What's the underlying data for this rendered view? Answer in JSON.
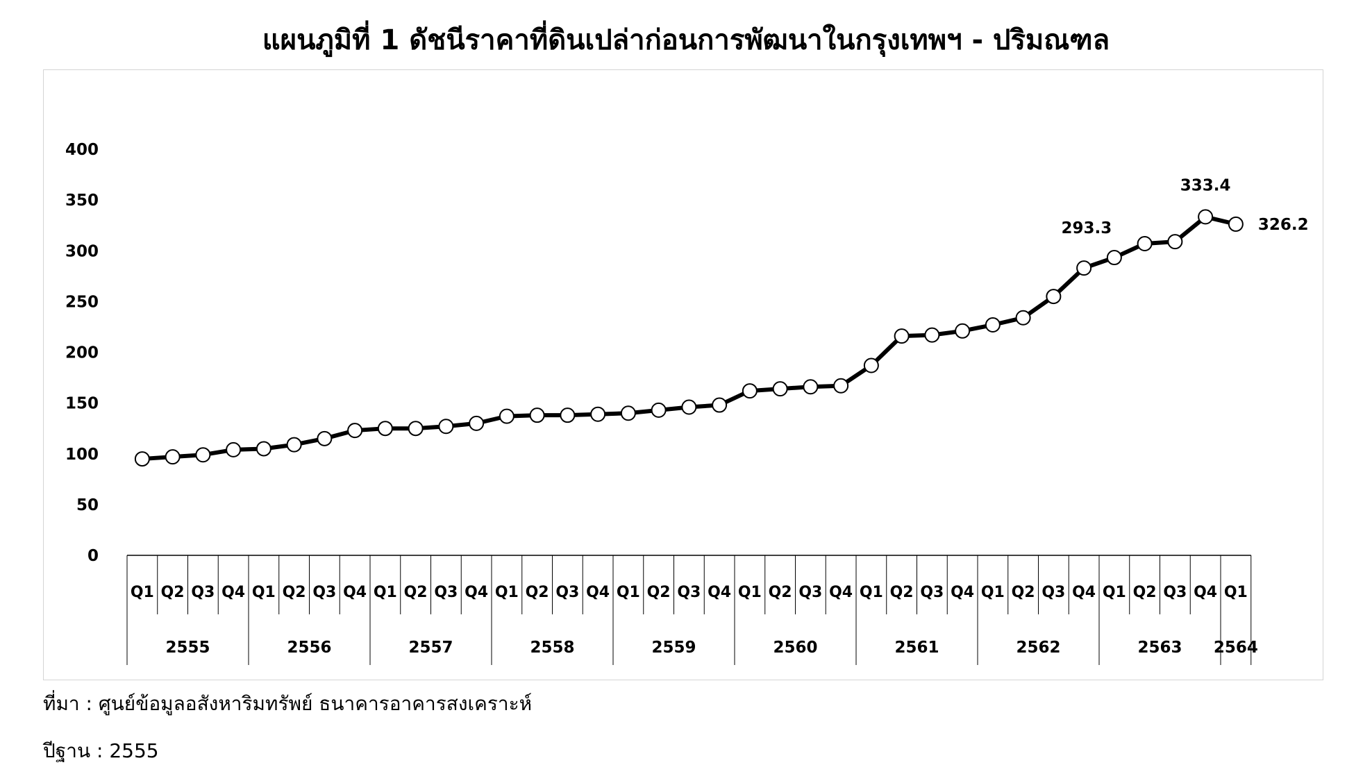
{
  "chart_data": {
    "type": "line",
    "title": "แผนภูมิที่ 1 ดัชนีราคาที่ดินเปล่าก่อนการพัฒนาในกรุงเทพฯ - ปริมณฑล",
    "xlabel": "",
    "ylabel": "",
    "ylim": [
      0,
      400
    ],
    "yticks": [
      0,
      50,
      100,
      150,
      200,
      250,
      300,
      350,
      400
    ],
    "grid": false,
    "legend": "none",
    "line_color": "#000000",
    "marker_fill": "#ffffff",
    "categories": [
      "Q1",
      "Q2",
      "Q3",
      "Q4",
      "Q1",
      "Q2",
      "Q3",
      "Q4",
      "Q1",
      "Q2",
      "Q3",
      "Q4",
      "Q1",
      "Q2",
      "Q3",
      "Q4",
      "Q1",
      "Q2",
      "Q3",
      "Q4",
      "Q1",
      "Q2",
      "Q3",
      "Q4",
      "Q1",
      "Q2",
      "Q3",
      "Q4",
      "Q1",
      "Q2",
      "Q3",
      "Q4",
      "Q1",
      "Q2",
      "Q3",
      "Q4",
      "Q1"
    ],
    "groups": [
      {
        "label": "2555",
        "count": 4
      },
      {
        "label": "2556",
        "count": 4
      },
      {
        "label": "2557",
        "count": 4
      },
      {
        "label": "2558",
        "count": 4
      },
      {
        "label": "2559",
        "count": 4
      },
      {
        "label": "2560",
        "count": 4
      },
      {
        "label": "2561",
        "count": 4
      },
      {
        "label": "2562",
        "count": 4
      },
      {
        "label": "2563",
        "count": 4
      },
      {
        "label": "2564",
        "count": 1
      }
    ],
    "values": [
      95,
      97,
      99,
      104,
      105,
      109,
      115,
      123,
      125,
      125,
      127,
      130,
      137,
      138,
      138,
      139,
      140,
      143,
      146,
      148,
      162,
      164,
      166,
      167,
      187,
      216,
      217,
      221,
      227,
      234,
      255,
      283,
      293.3,
      307,
      309,
      333.4,
      326.2
    ],
    "data_labels": [
      {
        "index": 32,
        "text": "293.3",
        "position": "above-left"
      },
      {
        "index": 35,
        "text": "333.4",
        "position": "above"
      },
      {
        "index": 36,
        "text": "326.2",
        "position": "right"
      }
    ]
  },
  "notes": {
    "source": "ที่มา : ศูนย์ข้อมูลอสังหาริมทรัพย์ ธนาคารอาคารสงเคราะห์",
    "base_year": "ปีฐาน : 2555"
  }
}
